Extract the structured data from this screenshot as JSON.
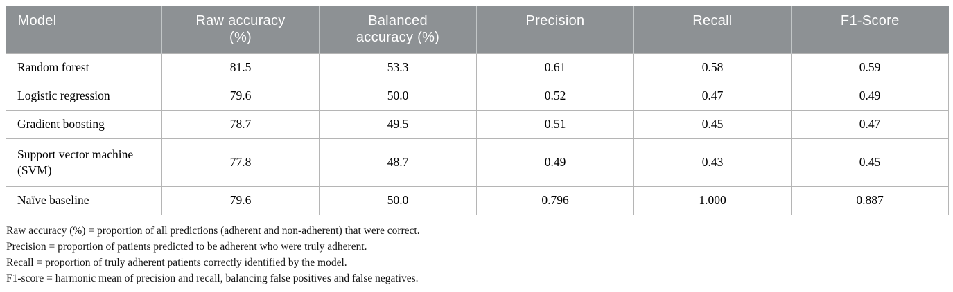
{
  "table": {
    "headers": [
      "Model",
      "Raw accuracy (%)",
      "Balanced accuracy (%)",
      "Precision",
      "Recall",
      "F1-Score"
    ],
    "rows": [
      [
        "Random forest",
        "81.5",
        "53.3",
        "0.61",
        "0.58",
        "0.59"
      ],
      [
        "Logistic regression",
        "79.6",
        "50.0",
        "0.52",
        "0.47",
        "0.49"
      ],
      [
        "Gradient boosting",
        "78.7",
        "49.5",
        "0.51",
        "0.45",
        "0.47"
      ],
      [
        "Support vector machine (SVM)",
        "77.8",
        "48.7",
        "0.49",
        "0.43",
        "0.45"
      ],
      [
        "Naïve baseline",
        "79.6",
        "50.0",
        "0.796",
        "1.000",
        "0.887"
      ]
    ]
  },
  "footnotes": [
    "Raw accuracy (%) = proportion of all predictions (adherent and non-adherent) that were correct.",
    "Precision = proportion of patients predicted to be adherent who were truly adherent.",
    "Recall = proportion of truly adherent patients correctly identified by the model.",
    "F1-score = harmonic mean of precision and recall, balancing false positives and false negatives."
  ],
  "colors": {
    "header_bg": "#8d9194",
    "header_text": "#ffffff",
    "cell_border": "#b5b5b5",
    "body_text": "#000000"
  }
}
